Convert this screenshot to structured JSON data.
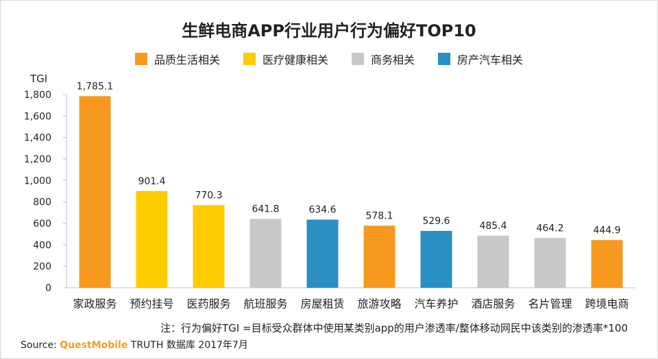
{
  "title": "生鲜电商APP行业用户行为偏好TOP10",
  "legend": [
    {
      "label": "品质生活相关",
      "color": "#F7991F"
    },
    {
      "label": "医疗健康相关",
      "color": "#FFCC00"
    },
    {
      "label": "商务相关",
      "color": "#C8C8C8"
    },
    {
      "label": "房产汽车相关",
      "color": "#2A8FC3"
    }
  ],
  "note": "注：行为偏好TGI =目标受众群体中使用某类别app的用户渗透率/整体移动网民中该类别的渗透率*100",
  "source": {
    "label": "Source:",
    "brand": "QuestMobile",
    "rest": "TRUTH 数据库 2017年7月"
  },
  "chart_data": {
    "type": "bar",
    "title": "生鲜电商APP行业用户行为偏好TOP10",
    "ylabel": "TGI",
    "xlabel": "",
    "ylim": [
      0,
      1800
    ],
    "yticks": [
      0,
      200,
      400,
      600,
      800,
      1000,
      1200,
      1400,
      1600,
      1800
    ],
    "ytick_labels": [
      "0",
      "200",
      "400",
      "600",
      "800",
      "1,000",
      "1,200",
      "1,400",
      "1,600",
      "1,800"
    ],
    "grid": false,
    "legend_position": "top",
    "categories": [
      "家政服务",
      "预约挂号",
      "医药服务",
      "航班服务",
      "房屋租赁",
      "旅游攻略",
      "汽车养护",
      "酒店服务",
      "名片管理",
      "跨境电商"
    ],
    "values": [
      1785.1,
      901.4,
      770.3,
      641.8,
      634.6,
      578.1,
      529.6,
      485.4,
      464.2,
      444.9
    ],
    "value_labels": [
      "1,785.1",
      "901.4",
      "770.3",
      "641.8",
      "634.6",
      "578.1",
      "529.6",
      "485.4",
      "464.2",
      "444.9"
    ],
    "bar_groups": [
      "品质生活相关",
      "医疗健康相关",
      "医疗健康相关",
      "商务相关",
      "房产汽车相关",
      "品质生活相关",
      "房产汽车相关",
      "商务相关",
      "商务相关",
      "品质生活相关"
    ]
  }
}
